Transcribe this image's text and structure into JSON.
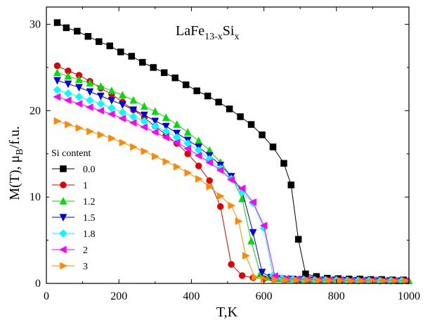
{
  "chart_data": {
    "type": "line",
    "title": "LaFe",
    "title_sub": "13-x",
    "title_mid": "Si",
    "title_sub2": "x",
    "xlabel": "T,K",
    "ylabel_main": "M(T), μ",
    "ylabel_sub": "B",
    "ylabel_end": "/f.u.",
    "xlim": [
      0,
      1000
    ],
    "ylim": [
      0,
      32
    ],
    "xticks": [
      0,
      200,
      400,
      600,
      800,
      1000
    ],
    "yticks": [
      0,
      10,
      20,
      30
    ],
    "grid": false,
    "legend_title": "Si content",
    "legend_position": "left-middle",
    "series": [
      {
        "name": "0.0",
        "color": "#000000",
        "marker": "square",
        "x": [
          30,
          55,
          85,
          115,
          145,
          175,
          205,
          235,
          265,
          295,
          325,
          355,
          385,
          415,
          445,
          475,
          505,
          535,
          565,
          595,
          625,
          655,
          675,
          695,
          715,
          745,
          775,
          805,
          835,
          865,
          895,
          925,
          955,
          985
        ],
        "y": [
          30.2,
          29.6,
          29.2,
          28.6,
          28.0,
          27.5,
          26.8,
          26.3,
          25.6,
          25.0,
          24.4,
          23.8,
          23.0,
          22.3,
          21.7,
          21.0,
          20.2,
          19.3,
          18.4,
          17.2,
          15.8,
          13.9,
          11.4,
          5.1,
          1.1,
          0.8,
          0.6,
          0.55,
          0.5,
          0.5,
          0.45,
          0.45,
          0.4,
          0.4
        ]
      },
      {
        "name": "1",
        "color": "#e00000",
        "marker": "circle",
        "x": [
          30,
          60,
          90,
          120,
          150,
          180,
          210,
          240,
          270,
          300,
          330,
          360,
          390,
          420,
          450,
          480,
          510,
          540,
          570,
          600,
          630,
          660,
          690,
          720
        ],
        "y": [
          25.2,
          24.6,
          24.1,
          23.4,
          22.6,
          21.9,
          21.0,
          20.1,
          19.2,
          18.2,
          17.2,
          16.2,
          15.0,
          13.6,
          11.9,
          8.9,
          2.2,
          0.9,
          0.65,
          0.55,
          0.5,
          0.45,
          0.4,
          0.4
        ]
      },
      {
        "name": "1.2",
        "color": "#00dd00",
        "marker": "triangle-up",
        "x": [
          30,
          60,
          90,
          120,
          150,
          180,
          210,
          240,
          270,
          300,
          330,
          360,
          390,
          420,
          450,
          480,
          510,
          540,
          565,
          590,
          615,
          640,
          670,
          700,
          730,
          760,
          790,
          820,
          850,
          880,
          910,
          940,
          970,
          1000
        ],
        "y": [
          24.4,
          24.0,
          23.6,
          23.2,
          22.8,
          22.3,
          21.8,
          21.2,
          20.5,
          19.9,
          19.2,
          18.4,
          17.5,
          16.5,
          15.4,
          14.0,
          12.4,
          9.8,
          4.9,
          1.1,
          0.7,
          0.55,
          0.5,
          0.45,
          0.4,
          0.4,
          0.4,
          0.4,
          0.35,
          0.35,
          0.35,
          0.35,
          0.3,
          0.3
        ]
      },
      {
        "name": "1.5",
        "color": "#0000e0",
        "marker": "triangle-down",
        "x": [
          30,
          60,
          90,
          120,
          150,
          180,
          210,
          240,
          270,
          300,
          330,
          360,
          390,
          420,
          450,
          480,
          510,
          540,
          570,
          595,
          620,
          650,
          680,
          710,
          740,
          770,
          800,
          830,
          860,
          890,
          920,
          950,
          980
        ],
        "y": [
          23.5,
          23.1,
          22.7,
          22.2,
          21.7,
          21.2,
          20.7,
          20.1,
          19.5,
          18.8,
          18.2,
          17.4,
          16.6,
          15.8,
          14.8,
          13.7,
          12.4,
          10.7,
          5.9,
          1.3,
          0.7,
          0.55,
          0.5,
          0.45,
          0.4,
          0.4,
          0.4,
          0.35,
          0.35,
          0.35,
          0.3,
          0.3,
          0.3
        ]
      },
      {
        "name": "1.8",
        "color": "#00ffff",
        "marker": "diamond",
        "x": [
          30,
          60,
          90,
          120,
          150,
          180,
          210,
          240,
          270,
          300,
          330,
          360,
          390,
          420,
          450,
          480,
          510,
          540,
          570,
          600,
          625,
          650,
          680,
          710,
          740,
          770,
          800,
          830,
          860,
          890,
          920,
          950,
          980
        ],
        "y": [
          22.4,
          22.0,
          21.6,
          21.2,
          20.8,
          20.3,
          19.8,
          19.3,
          18.8,
          18.2,
          17.6,
          16.9,
          16.2,
          15.4,
          14.4,
          13.3,
          12.1,
          10.6,
          9.3,
          6.4,
          0.9,
          0.6,
          0.5,
          0.45,
          0.4,
          0.4,
          0.4,
          0.35,
          0.35,
          0.35,
          0.3,
          0.3,
          0.3
        ]
      },
      {
        "name": "2",
        "color": "#ff00ff",
        "marker": "triangle-left",
        "x": [
          30,
          60,
          90,
          120,
          150,
          180,
          210,
          240,
          270,
          300,
          330,
          360,
          390,
          420,
          450,
          480,
          510,
          540,
          570,
          600,
          630,
          660,
          690,
          720,
          750,
          780,
          810,
          840,
          870,
          900,
          930,
          960,
          990
        ],
        "y": [
          21.6,
          21.2,
          20.8,
          20.4,
          20.0,
          19.6,
          19.1,
          18.6,
          18.1,
          17.5,
          16.9,
          16.3,
          15.6,
          14.8,
          14.0,
          13.1,
          12.0,
          11.0,
          9.4,
          6.7,
          0.85,
          0.55,
          0.5,
          0.45,
          0.4,
          0.4,
          0.4,
          0.35,
          0.35,
          0.35,
          0.3,
          0.3,
          0.3
        ]
      },
      {
        "name": "3",
        "color": "#ff8800",
        "marker": "triangle-right",
        "x": [
          30,
          60,
          90,
          120,
          150,
          180,
          210,
          240,
          270,
          300,
          330,
          360,
          390,
          420,
          450,
          480,
          510,
          530,
          550,
          575,
          600,
          630,
          660,
          690,
          720,
          750,
          780,
          810,
          840,
          870,
          900,
          930,
          960,
          990
        ],
        "y": [
          18.8,
          18.4,
          18.0,
          17.6,
          17.2,
          16.8,
          16.3,
          15.8,
          15.3,
          14.7,
          14.1,
          13.5,
          12.8,
          12.1,
          11.2,
          10.1,
          9.0,
          7.2,
          3.2,
          0.7,
          0.5,
          0.45,
          0.4,
          0.4,
          0.4,
          0.35,
          0.35,
          0.35,
          0.3,
          0.3,
          0.3,
          0.3,
          0.3,
          0.3
        ]
      }
    ]
  }
}
